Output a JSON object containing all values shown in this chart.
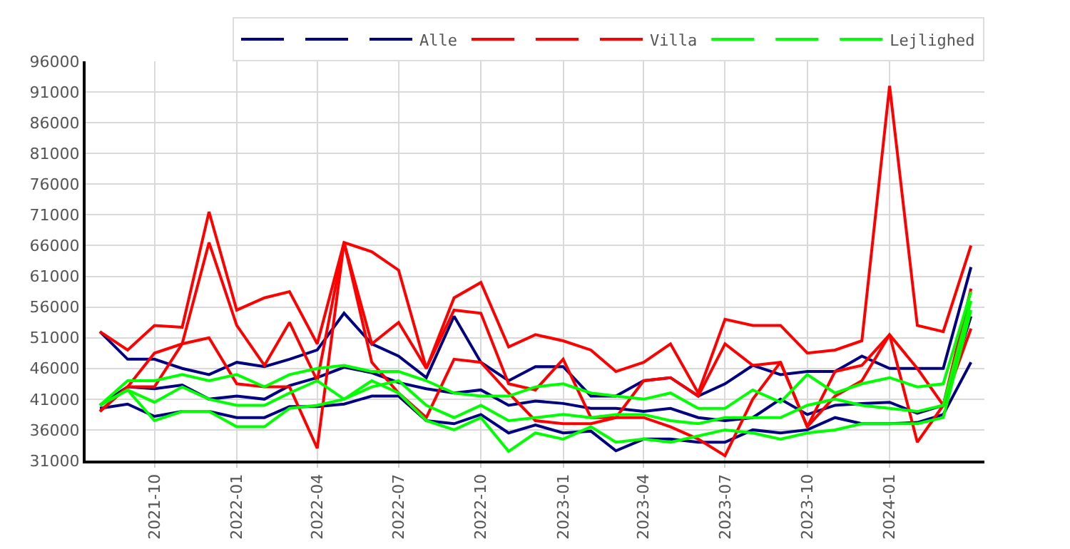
{
  "chart_data": {
    "type": "line",
    "x": [
      "2021-08",
      "2021-09",
      "2021-10",
      "2021-11",
      "2021-12",
      "2022-01",
      "2022-02",
      "2022-03",
      "2022-04",
      "2022-05",
      "2022-06",
      "2022-07",
      "2022-08",
      "2022-09",
      "2022-10",
      "2022-11",
      "2022-12",
      "2023-01",
      "2023-02",
      "2023-03",
      "2023-04",
      "2023-05",
      "2023-06",
      "2023-07",
      "2023-08",
      "2023-09",
      "2023-10",
      "2023-11",
      "2023-12",
      "2024-01",
      "2024-02",
      "2024-03",
      "2024-04"
    ],
    "series": [
      {
        "color": "#000080",
        "values": [
          52000,
          47500,
          47500,
          46000,
          45000,
          47000,
          46300,
          47500,
          49000,
          55000,
          50000,
          48000,
          44500,
          54500,
          47000,
          44000,
          46300,
          46300,
          41500,
          41500,
          44000,
          44500,
          41500,
          43500,
          46500,
          45000,
          45500,
          45500,
          48000,
          46000,
          46000,
          46000,
          62500
        ]
      },
      {
        "color": "#000080",
        "values": [
          40000,
          43000,
          42700,
          43300,
          41000,
          41500,
          41000,
          43200,
          44500,
          46200,
          45300,
          43700,
          42700,
          42000,
          42500,
          40000,
          40700,
          40300,
          39500,
          39500,
          39000,
          39500,
          38000,
          37500,
          38000,
          41000,
          38500,
          40000,
          40300,
          40500,
          38700,
          40000,
          54500
        ]
      },
      {
        "name": "Alle",
        "color": "#000080",
        "values": [
          39500,
          40200,
          38200,
          39000,
          39000,
          38000,
          38000,
          39800,
          39800,
          40200,
          41500,
          41500,
          37500,
          37000,
          38500,
          35500,
          36800,
          35500,
          35800,
          32600,
          34500,
          34500,
          34000,
          34000,
          36000,
          35500,
          36000,
          38000,
          37000,
          37000,
          37200,
          38500,
          47000
        ]
      },
      {
        "color": "#ff0000",
        "values": [
          52000,
          49000,
          53000,
          52700,
          71500,
          55500,
          57500,
          58500,
          50000,
          66500,
          65000,
          62000,
          46000,
          57500,
          60000,
          49500,
          51500,
          50500,
          49000,
          45500,
          47000,
          50000,
          42000,
          54000,
          53000,
          53000,
          48500,
          49000,
          50500,
          92000,
          53000,
          52000,
          66000
        ]
      },
      {
        "color": "#ff0000",
        "values": [
          39000,
          43000,
          43000,
          50000,
          66500,
          53000,
          46500,
          53500,
          44000,
          66500,
          50000,
          53500,
          46000,
          55500,
          55000,
          43500,
          42500,
          47500,
          38000,
          38000,
          44000,
          44500,
          41500,
          50000,
          46500,
          47000,
          36500,
          41500,
          44000,
          51500,
          46000,
          40000,
          59000
        ]
      },
      {
        "name": "Villa",
        "color": "#ff0000",
        "values": [
          39000,
          43000,
          48500,
          50000,
          51000,
          43500,
          43000,
          43000,
          33000,
          66500,
          47000,
          42000,
          38000,
          47500,
          47000,
          42000,
          37500,
          37000,
          37000,
          38000,
          38000,
          36500,
          34500,
          31800,
          41000,
          47000,
          36500,
          45500,
          46500,
          51500,
          34000,
          40000,
          52500
        ]
      },
      {
        "color": "#00ff00",
        "values": [
          40000,
          44000,
          44000,
          45000,
          44000,
          45000,
          43000,
          45000,
          46000,
          46500,
          45500,
          45500,
          44000,
          42000,
          41500,
          41500,
          43000,
          43500,
          42000,
          41500,
          41000,
          42000,
          39500,
          39500,
          42500,
          40500,
          45000,
          42000,
          43500,
          44500,
          43000,
          43500,
          58500
        ]
      },
      {
        "color": "#00ff00",
        "values": [
          40000,
          42500,
          40500,
          43000,
          41000,
          40000,
          40000,
          42000,
          44000,
          41000,
          43000,
          44000,
          40000,
          38000,
          40000,
          37500,
          38000,
          38500,
          38000,
          38500,
          38500,
          37500,
          37000,
          38000,
          38000,
          38000,
          40000,
          41000,
          40000,
          39500,
          39000,
          40000,
          57000
        ]
      },
      {
        "name": "Lejlighed",
        "color": "#00ff00",
        "values": [
          40000,
          42500,
          37500,
          39000,
          39000,
          36500,
          36500,
          39500,
          40000,
          41000,
          44000,
          42000,
          37500,
          36000,
          38000,
          32500,
          35500,
          34500,
          36500,
          34000,
          34500,
          34000,
          35000,
          36000,
          35500,
          34500,
          35500,
          36000,
          37000,
          37000,
          37000,
          38000,
          55500
        ]
      }
    ],
    "xlim": [
      "2021-07-16",
      "2024-04-16"
    ],
    "xticks": [
      "2021-10",
      "2022-01",
      "2022-04",
      "2022-07",
      "2022-10",
      "2023-01",
      "2023-04",
      "2023-07",
      "2023-10",
      "2024-01"
    ],
    "ylim": [
      31000,
      96000
    ],
    "yticks": [
      31000,
      36000,
      41000,
      46000,
      51000,
      56000,
      61000,
      66000,
      71000,
      76000,
      81000,
      86000,
      91000,
      96000
    ],
    "grid": true,
    "legend": "top right",
    "marker": "none",
    "line_style": "solid"
  }
}
